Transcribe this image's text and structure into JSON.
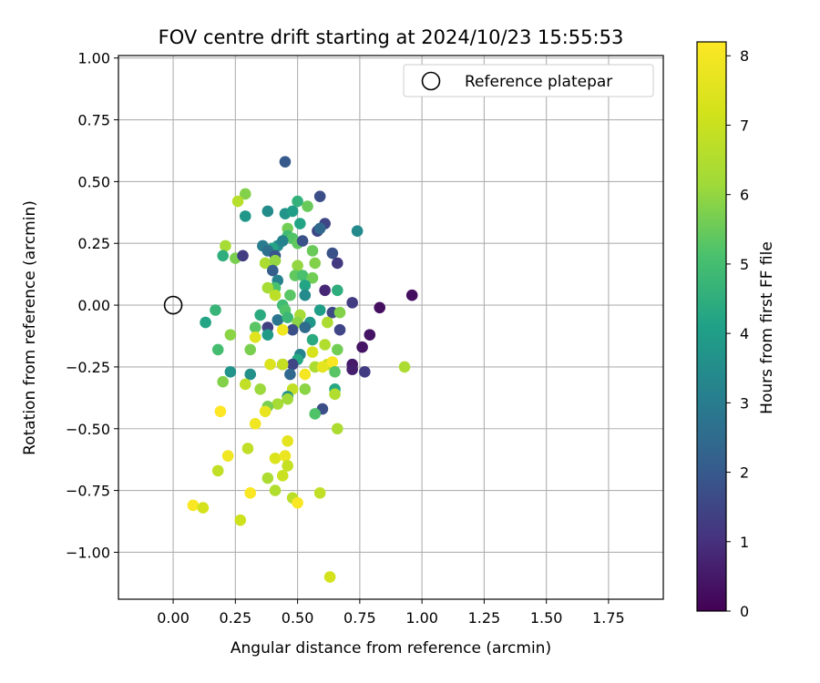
{
  "chart_data": {
    "type": "scatter",
    "title": "FOV centre drift starting at 2024/10/23 15:55:53",
    "xlabel": "Angular distance from reference (arcmin)",
    "ylabel": "Rotation from reference (arcmin)",
    "xlim": [
      -0.22,
      1.97
    ],
    "ylim": [
      -1.19,
      1.01
    ],
    "xticks": [
      "0.00",
      "0.25",
      "0.50",
      "0.75",
      "1.00",
      "1.25",
      "1.50",
      "1.75"
    ],
    "yticks": [
      "−1.00",
      "−0.75",
      "−0.50",
      "−0.25",
      "0.00",
      "0.25",
      "0.50",
      "0.75",
      "1.00"
    ],
    "grid": true,
    "legend": {
      "placement": "upper right",
      "label": "Reference platepar"
    },
    "reference_point": {
      "x": 0.0,
      "y": 0.0
    },
    "colorbar": {
      "label": "Hours from first FF file",
      "colormap": "viridis",
      "range": [
        0,
        8.2
      ],
      "ticks": [
        "0",
        "1",
        "2",
        "3",
        "4",
        "5",
        "6",
        "7",
        "8"
      ]
    },
    "points": [
      [
        0.45,
        0.58,
        2.0
      ],
      [
        0.59,
        0.44,
        1.7
      ],
      [
        0.29,
        0.45,
        5.8
      ],
      [
        0.26,
        0.42,
        6.6
      ],
      [
        0.5,
        0.42,
        4.6
      ],
      [
        0.54,
        0.4,
        5.5
      ],
      [
        0.38,
        0.38,
        3.5
      ],
      [
        0.45,
        0.37,
        3.7
      ],
      [
        0.48,
        0.38,
        4.0
      ],
      [
        0.29,
        0.36,
        3.8
      ],
      [
        0.61,
        0.33,
        1.5
      ],
      [
        0.51,
        0.33,
        4.2
      ],
      [
        0.46,
        0.31,
        5.6
      ],
      [
        0.58,
        0.3,
        1.5
      ],
      [
        0.59,
        0.31,
        2.4
      ],
      [
        0.74,
        0.3,
        3.4
      ],
      [
        0.46,
        0.28,
        4.9
      ],
      [
        0.48,
        0.27,
        5.2
      ],
      [
        0.42,
        0.24,
        3.5
      ],
      [
        0.4,
        0.23,
        4.2
      ],
      [
        0.36,
        0.24,
        3.0
      ],
      [
        0.44,
        0.26,
        3.2
      ],
      [
        0.5,
        0.25,
        5.4
      ],
      [
        0.52,
        0.26,
        1.8
      ],
      [
        0.21,
        0.24,
        6.3
      ],
      [
        0.38,
        0.22,
        2.6
      ],
      [
        0.41,
        0.2,
        1.9
      ],
      [
        0.56,
        0.22,
        5.5
      ],
      [
        0.64,
        0.21,
        1.8
      ],
      [
        0.2,
        0.2,
        4.5
      ],
      [
        0.25,
        0.19,
        5.7
      ],
      [
        0.28,
        0.2,
        1.3
      ],
      [
        0.37,
        0.17,
        6.4
      ],
      [
        0.41,
        0.18,
        6.0
      ],
      [
        0.5,
        0.16,
        6.0
      ],
      [
        0.57,
        0.17,
        5.8
      ],
      [
        0.66,
        0.17,
        1.2
      ],
      [
        0.4,
        0.14,
        2.1
      ],
      [
        0.49,
        0.12,
        5.4
      ],
      [
        0.52,
        0.12,
        5.1
      ],
      [
        0.56,
        0.11,
        5.6
      ],
      [
        0.42,
        0.1,
        3.2
      ],
      [
        0.41,
        0.07,
        5.1
      ],
      [
        0.38,
        0.07,
        6.3
      ],
      [
        0.53,
        0.08,
        4.2
      ],
      [
        0.61,
        0.06,
        0.8
      ],
      [
        0.66,
        0.06,
        4.5
      ],
      [
        0.47,
        0.04,
        5.3
      ],
      [
        0.53,
        0.04,
        3.4
      ],
      [
        0.41,
        0.04,
        6.7
      ],
      [
        0.72,
        0.01,
        1.3
      ],
      [
        0.96,
        0.04,
        0.3
      ],
      [
        0.83,
        -0.01,
        0.3
      ],
      [
        0.44,
        0.0,
        4.9
      ],
      [
        0.45,
        -0.02,
        5.2
      ],
      [
        0.59,
        -0.02,
        4.0
      ],
      [
        0.17,
        -0.02,
        4.7
      ],
      [
        0.64,
        -0.03,
        1.6
      ],
      [
        0.67,
        -0.03,
        5.8
      ],
      [
        0.51,
        -0.04,
        6.3
      ],
      [
        0.13,
        -0.07,
        4.2
      ],
      [
        0.42,
        -0.06,
        2.8
      ],
      [
        0.46,
        -0.05,
        4.8
      ],
      [
        0.5,
        -0.07,
        5.9
      ],
      [
        0.35,
        -0.04,
        4.4
      ],
      [
        0.55,
        -0.07,
        3.8
      ],
      [
        0.62,
        -0.07,
        6.4
      ],
      [
        0.38,
        -0.09,
        1.4
      ],
      [
        0.33,
        -0.09,
        5.3
      ],
      [
        0.48,
        -0.1,
        1.7
      ],
      [
        0.53,
        -0.09,
        2.5
      ],
      [
        0.67,
        -0.1,
        1.5
      ],
      [
        0.79,
        -0.12,
        0.4
      ],
      [
        0.44,
        -0.1,
        7.9
      ],
      [
        0.38,
        -0.12,
        3.9
      ],
      [
        0.23,
        -0.12,
        5.9
      ],
      [
        0.33,
        -0.13,
        7.5
      ],
      [
        0.56,
        -0.14,
        4.4
      ],
      [
        0.61,
        -0.16,
        6.5
      ],
      [
        0.76,
        -0.17,
        0.4
      ],
      [
        0.18,
        -0.18,
        5.0
      ],
      [
        0.31,
        -0.18,
        5.7
      ],
      [
        0.56,
        -0.19,
        7.3
      ],
      [
        0.66,
        -0.18,
        5.6
      ],
      [
        0.51,
        -0.2,
        3.2
      ],
      [
        0.5,
        -0.22,
        4.3
      ],
      [
        0.48,
        -0.24,
        1.5
      ],
      [
        0.44,
        -0.24,
        1.0
      ],
      [
        0.39,
        -0.24,
        7.4
      ],
      [
        0.44,
        -0.24,
        6.9
      ],
      [
        0.57,
        -0.25,
        6.4
      ],
      [
        0.62,
        -0.24,
        7.0
      ],
      [
        0.64,
        -0.23,
        8.1
      ],
      [
        0.6,
        -0.25,
        7.6
      ],
      [
        0.72,
        -0.24,
        0.5
      ],
      [
        0.72,
        -0.26,
        0.6
      ],
      [
        0.77,
        -0.27,
        1.3
      ],
      [
        0.65,
        -0.27,
        5.3
      ],
      [
        0.93,
        -0.25,
        6.4
      ],
      [
        0.23,
        -0.27,
        3.7
      ],
      [
        0.31,
        -0.28,
        3.6
      ],
      [
        0.47,
        -0.28,
        2.4
      ],
      [
        0.53,
        -0.28,
        8.0
      ],
      [
        0.2,
        -0.31,
        5.8
      ],
      [
        0.29,
        -0.32,
        6.8
      ],
      [
        0.35,
        -0.34,
        6.1
      ],
      [
        0.48,
        -0.34,
        6.8
      ],
      [
        0.53,
        -0.34,
        5.9
      ],
      [
        0.65,
        -0.34,
        4.3
      ],
      [
        0.65,
        -0.36,
        6.5
      ],
      [
        0.46,
        -0.37,
        3.6
      ],
      [
        0.46,
        -0.38,
        6.2
      ],
      [
        0.42,
        -0.4,
        6.3
      ],
      [
        0.38,
        -0.41,
        5.7
      ],
      [
        0.37,
        -0.43,
        7.7
      ],
      [
        0.6,
        -0.42,
        1.7
      ],
      [
        0.57,
        -0.44,
        5.2
      ],
      [
        0.19,
        -0.43,
        8.2
      ],
      [
        0.33,
        -0.48,
        7.9
      ],
      [
        0.66,
        -0.5,
        6.4
      ],
      [
        0.46,
        -0.55,
        7.6
      ],
      [
        0.3,
        -0.58,
        6.8
      ],
      [
        0.22,
        -0.61,
        7.9
      ],
      [
        0.41,
        -0.62,
        7.4
      ],
      [
        0.45,
        -0.61,
        7.8
      ],
      [
        0.46,
        -0.65,
        6.9
      ],
      [
        0.18,
        -0.67,
        6.8
      ],
      [
        0.44,
        -0.69,
        7.0
      ],
      [
        0.38,
        -0.7,
        6.4
      ],
      [
        0.41,
        -0.75,
        6.5
      ],
      [
        0.31,
        -0.76,
        8.1
      ],
      [
        0.59,
        -0.76,
        6.8
      ],
      [
        0.48,
        -0.78,
        6.7
      ],
      [
        0.5,
        -0.8,
        8.1
      ],
      [
        0.08,
        -0.81,
        8.1
      ],
      [
        0.12,
        -0.82,
        7.2
      ],
      [
        0.27,
        -0.87,
        7.1
      ],
      [
        0.63,
        -1.1,
        7.2
      ]
    ]
  }
}
